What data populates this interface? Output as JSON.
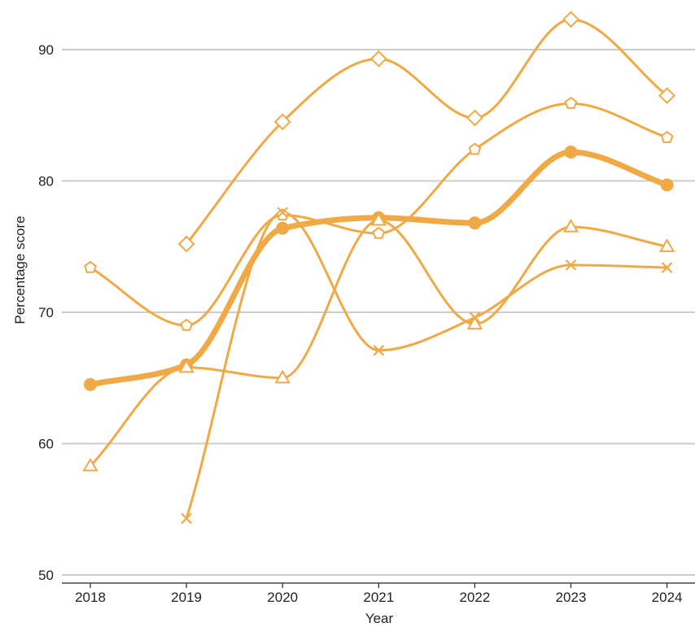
{
  "chart_data": {
    "type": "line",
    "title": "",
    "xlabel": "Year",
    "ylabel": "Percentage score",
    "x": [
      2018,
      2019,
      2020,
      2021,
      2022,
      2023,
      2024
    ],
    "xticks": [
      "2018",
      "2019",
      "2020",
      "2021",
      "2022",
      "2023",
      "2024"
    ],
    "yticks": [
      "50",
      "60",
      "70",
      "80",
      "90"
    ],
    "ylim": [
      50,
      91
    ],
    "grid": "horizontal",
    "legend": "none",
    "color": "#f0a945",
    "series": [
      {
        "marker": "diamond",
        "highlight": false,
        "values": [
          null,
          75.2,
          84.5,
          89.3,
          84.8,
          92.3,
          86.5
        ]
      },
      {
        "marker": "pentagon",
        "highlight": false,
        "values": [
          73.4,
          69.0,
          77.4,
          76.0,
          82.4,
          85.9,
          83.3
        ]
      },
      {
        "marker": "circle",
        "highlight": true,
        "values": [
          64.5,
          66.0,
          76.4,
          77.2,
          76.8,
          82.2,
          79.7
        ]
      },
      {
        "marker": "triangle",
        "highlight": false,
        "values": [
          58.3,
          65.8,
          65.0,
          77.0,
          69.1,
          76.5,
          75.0
        ]
      },
      {
        "marker": "x",
        "highlight": false,
        "values": [
          null,
          54.3,
          77.6,
          67.1,
          69.6,
          73.6,
          73.4
        ]
      }
    ]
  }
}
